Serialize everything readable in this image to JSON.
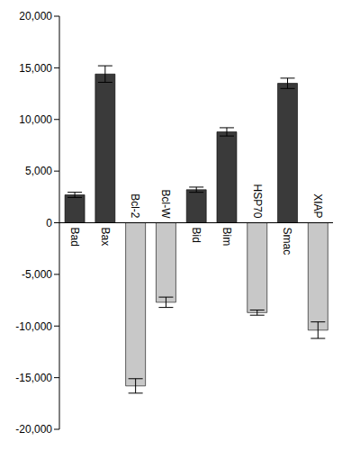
{
  "chart_data": {
    "type": "bar",
    "categories": [
      "Bad",
      "Bax",
      "Bcl-2",
      "Bcl-W",
      "Bid",
      "Bim",
      "HSP70",
      "Smac",
      "XIAP"
    ],
    "values": [
      2700,
      14400,
      -15800,
      -7700,
      3200,
      8800,
      -8700,
      13500,
      -10400
    ],
    "errors": [
      250,
      800,
      700,
      500,
      250,
      400,
      250,
      500,
      800
    ],
    "colors": [
      "#3a3a3a",
      "#3a3a3a",
      "#c8c8c8",
      "#c8c8c8",
      "#3a3a3a",
      "#3a3a3a",
      "#c8c8c8",
      "#3a3a3a",
      "#c8c8c8"
    ],
    "ylim": [
      -20000,
      20000
    ],
    "yticks": [
      {
        "value": -20000,
        "label": "-20,000"
      },
      {
        "value": -15000,
        "label": "-15,000"
      },
      {
        "value": -10000,
        "label": "-10,000"
      },
      {
        "value": -5000,
        "label": "-5,000"
      },
      0,
      {
        "value": 5000,
        "label": "5,000"
      },
      {
        "value": 10000,
        "label": "10,000"
      },
      {
        "value": 15000,
        "label": "15,000"
      },
      {
        "value": 20000,
        "label": "20,000"
      }
    ],
    "grid": false
  }
}
